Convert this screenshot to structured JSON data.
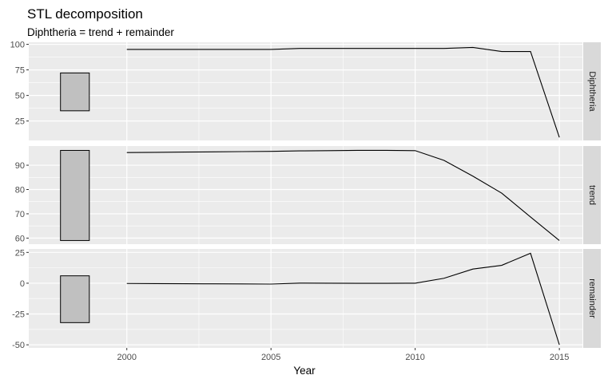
{
  "chart_data": {
    "type": "line",
    "title": "STL decomposition",
    "subtitle": "Diphtheria = trend + remainder",
    "xlabel": "Year",
    "x": [
      2000,
      2001,
      2002,
      2003,
      2004,
      2005,
      2006,
      2007,
      2008,
      2009,
      2010,
      2011,
      2012,
      2013,
      2014,
      2015
    ],
    "x_ticks": [
      2000,
      2005,
      2010,
      2015
    ],
    "x_tick_labels": [
      "2000",
      "2005",
      "2010",
      "2015"
    ],
    "xlim": [
      1996.6,
      2015.8
    ],
    "grid": true,
    "scale_bar_x": [
      1997.7,
      1998.7
    ],
    "panels": [
      {
        "name": "Diphtheria",
        "values": [
          95,
          95,
          95,
          95,
          95,
          95,
          96,
          96,
          96,
          96,
          96,
          96,
          97,
          93,
          93,
          9
        ],
        "ylim": [
          6,
          102
        ],
        "y_ticks": [
          25,
          50,
          75,
          100
        ],
        "y_tick_labels": [
          "25",
          "50",
          "75",
          "100"
        ],
        "scale_bar_range": [
          35,
          72
        ]
      },
      {
        "name": "trend",
        "values": [
          95.2,
          95.3,
          95.4,
          95.5,
          95.6,
          95.7,
          95.9,
          96.0,
          96.1,
          96.1,
          96.0,
          92.0,
          85.5,
          78.5,
          68.7,
          59.0
        ],
        "ylim": [
          57.5,
          97.9
        ],
        "y_ticks": [
          60,
          70,
          80,
          90
        ],
        "y_tick_labels": [
          "60",
          "70",
          "80",
          "90"
        ],
        "scale_bar_range": [
          59.0,
          96.1
        ]
      },
      {
        "name": "remainder",
        "values": [
          -0.2,
          -0.3,
          -0.4,
          -0.5,
          -0.6,
          -0.7,
          0.1,
          0.0,
          -0.1,
          -0.1,
          0.0,
          4.0,
          11.5,
          14.5,
          24.3,
          -50
        ],
        "ylim": [
          -52.5,
          27.8
        ],
        "y_ticks": [
          -50,
          -25,
          0,
          25
        ],
        "y_tick_labels": [
          "-50",
          "-25",
          "0",
          "25"
        ],
        "scale_bar_range": [
          -32,
          6
        ]
      }
    ],
    "colors": {
      "panel_bg": "#ebebeb",
      "grid": "#ffffff",
      "strip_bg": "#d9d9d9",
      "line": "#000000",
      "scale_bar": "#c0c0c0"
    }
  }
}
